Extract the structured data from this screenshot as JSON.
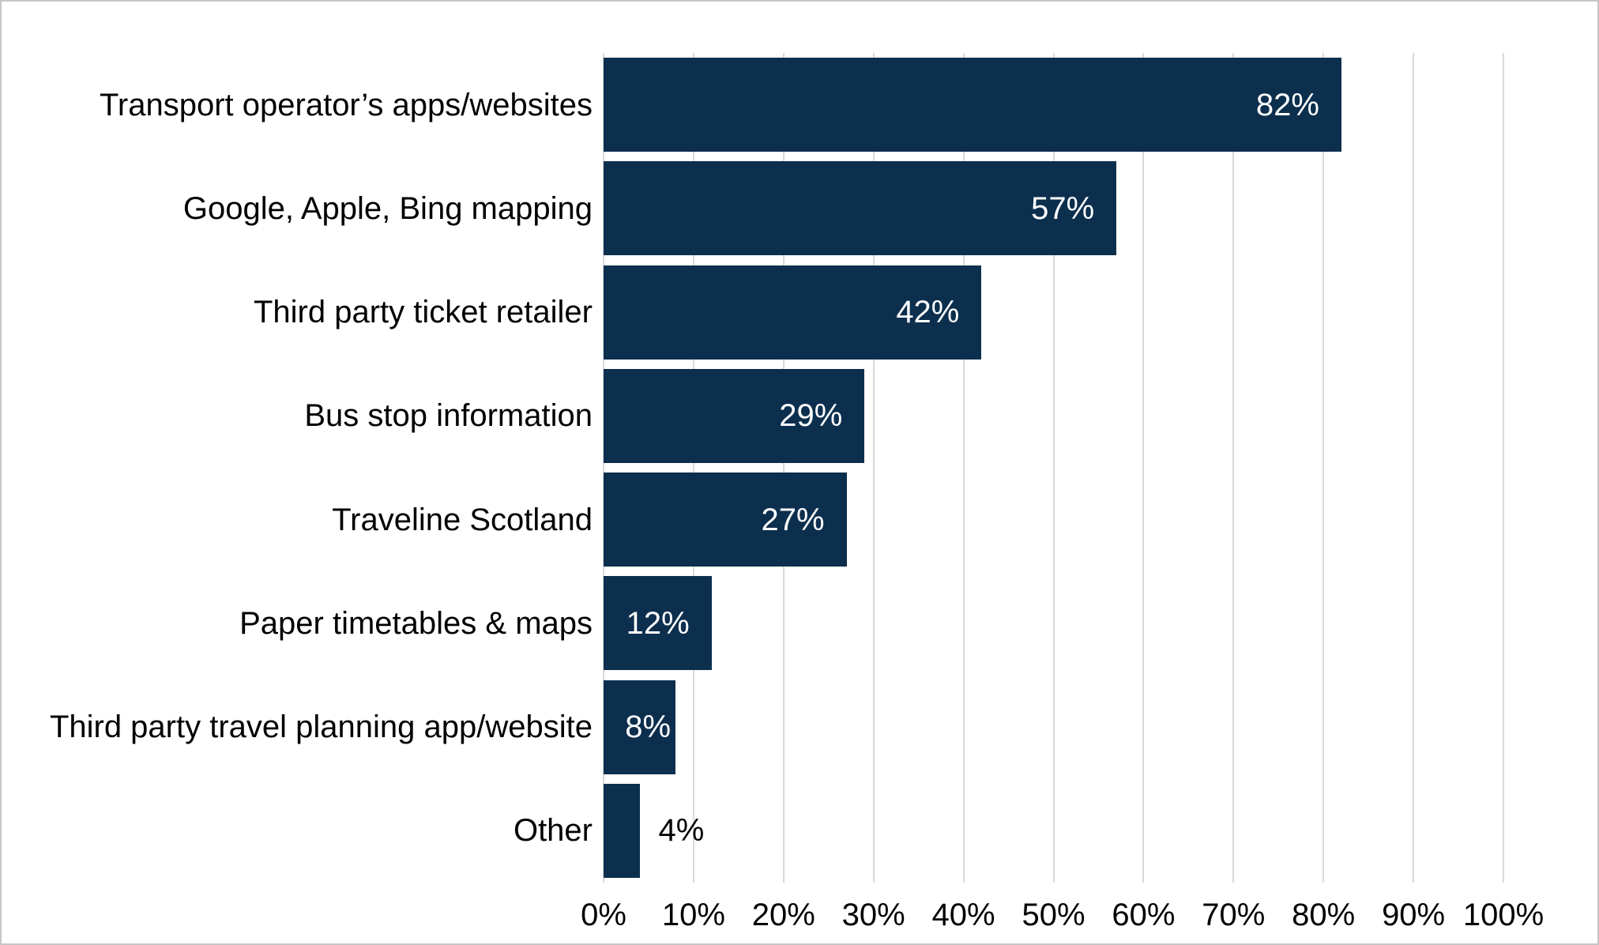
{
  "chart_data": {
    "type": "bar",
    "orientation": "horizontal",
    "title": "",
    "xlabel": "",
    "ylabel": "",
    "categories": [
      "Transport operator’s apps/websites",
      "Google, Apple, Bing mapping",
      "Third party ticket retailer",
      "Bus stop information",
      "Traveline Scotland",
      "Paper timetables & maps",
      "Third party travel planning app/website",
      "Other"
    ],
    "values": [
      82,
      57,
      42,
      29,
      27,
      12,
      8,
      4
    ],
    "value_labels": [
      "82%",
      "57%",
      "42%",
      "29%",
      "27%",
      "12%",
      "8%",
      "4%"
    ],
    "x_axis": {
      "xlim": [
        0,
        100
      ],
      "tick_values": [
        0,
        10,
        20,
        30,
        40,
        50,
        60,
        70,
        80,
        90,
        100
      ],
      "tick_labels": [
        "0%",
        "10%",
        "20%",
        "30%",
        "40%",
        "50%",
        "60%",
        "70%",
        "80%",
        "90%",
        "100%"
      ],
      "gridlines": true
    },
    "legend": null,
    "colors": {
      "bar": "#0d2f4e",
      "gridline": "#d9d9d9",
      "label_inside": "#ffffff",
      "label_outside": "#000000",
      "axis_text": "#000000",
      "background": "#ffffff",
      "frame_border": "#c6c6c6"
    }
  }
}
